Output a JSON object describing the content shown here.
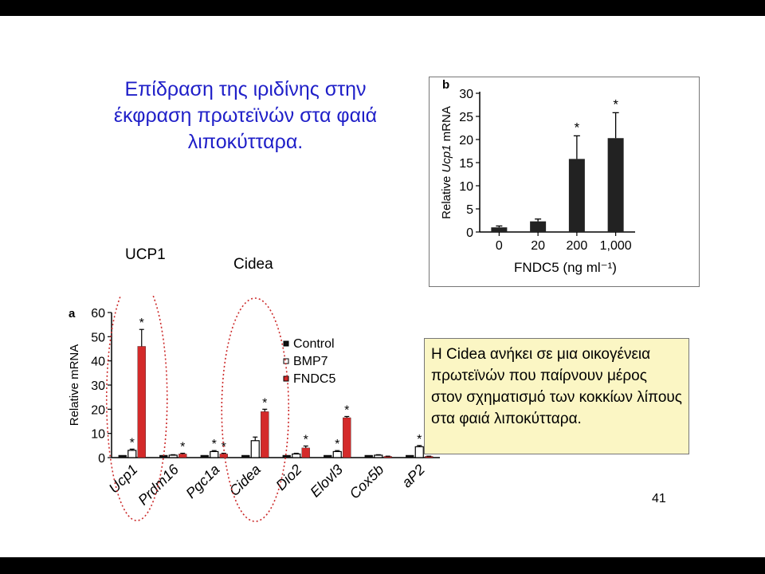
{
  "slide": {
    "title": "Επίδραση της ιριδίνης στην έκφραση πρωτεϊνών στα φαιά λιποκύτταρα.",
    "label_ucp1": "UCP1",
    "label_cidea": "Cidea",
    "note": "Η Cidea ανήκει σε μια οικογένεια πρωτεϊνών που παίρνουν μέρος στον σχηματισμό των κοκκίων λίπους στα φαιά λιποκύτταρα.",
    "page_number": "41"
  },
  "colors": {
    "control": "#111111",
    "bmp7": "#ffffff",
    "fndc5": "#d42a2a",
    "title": "#1f1fc8",
    "note_bg": "#fbf6c4",
    "ellipse": "#cc2a2a"
  },
  "chart_data": [
    {
      "type": "bar",
      "panel": "a",
      "ylabel": "Relative mRNA",
      "ylim": [
        0,
        60
      ],
      "yticks": [
        0,
        10,
        20,
        30,
        40,
        50,
        60
      ],
      "categories": [
        "Ucp1",
        "Prdm16",
        "Pgc1a",
        "Cidea",
        "Dio2",
        "Elovl3",
        "Cox5b",
        "aP2"
      ],
      "series": [
        {
          "name": "Control",
          "values": [
            1,
            1,
            1,
            1,
            1,
            1,
            1,
            1
          ]
        },
        {
          "name": "BMP7",
          "values": [
            3,
            1,
            2.5,
            7,
            1.5,
            2.5,
            1,
            4.5
          ],
          "errors": [
            0.5,
            0.2,
            0.4,
            1.5,
            0.3,
            0.4,
            0.2,
            0.5
          ],
          "stars": [
            true,
            false,
            true,
            false,
            false,
            true,
            false,
            true
          ]
        },
        {
          "name": "FNDC5",
          "values": [
            46,
            1.5,
            1.5,
            19,
            4,
            16.5,
            0.5,
            0.5
          ],
          "errors": [
            7,
            0.3,
            0.3,
            1,
            0.8,
            0.5,
            0.1,
            0.1
          ],
          "stars": [
            true,
            true,
            true,
            true,
            true,
            true,
            false,
            false
          ]
        }
      ],
      "legend": [
        "Control",
        "BMP7",
        "FNDC5"
      ],
      "legend_position": "top-right"
    },
    {
      "type": "bar",
      "panel": "b",
      "ylabel": "Relative Ucp1 mRNA",
      "xlabel": "FNDC5 (ng ml⁻¹)",
      "ylim": [
        0,
        30
      ],
      "yticks": [
        0,
        5,
        10,
        15,
        20,
        25,
        30
      ],
      "categories": [
        "0",
        "20",
        "200",
        "1,000"
      ],
      "values": [
        1,
        2.3,
        15.8,
        20.3
      ],
      "errors": [
        0.3,
        0.5,
        5,
        5.5
      ],
      "stars": [
        false,
        false,
        true,
        true
      ]
    }
  ]
}
